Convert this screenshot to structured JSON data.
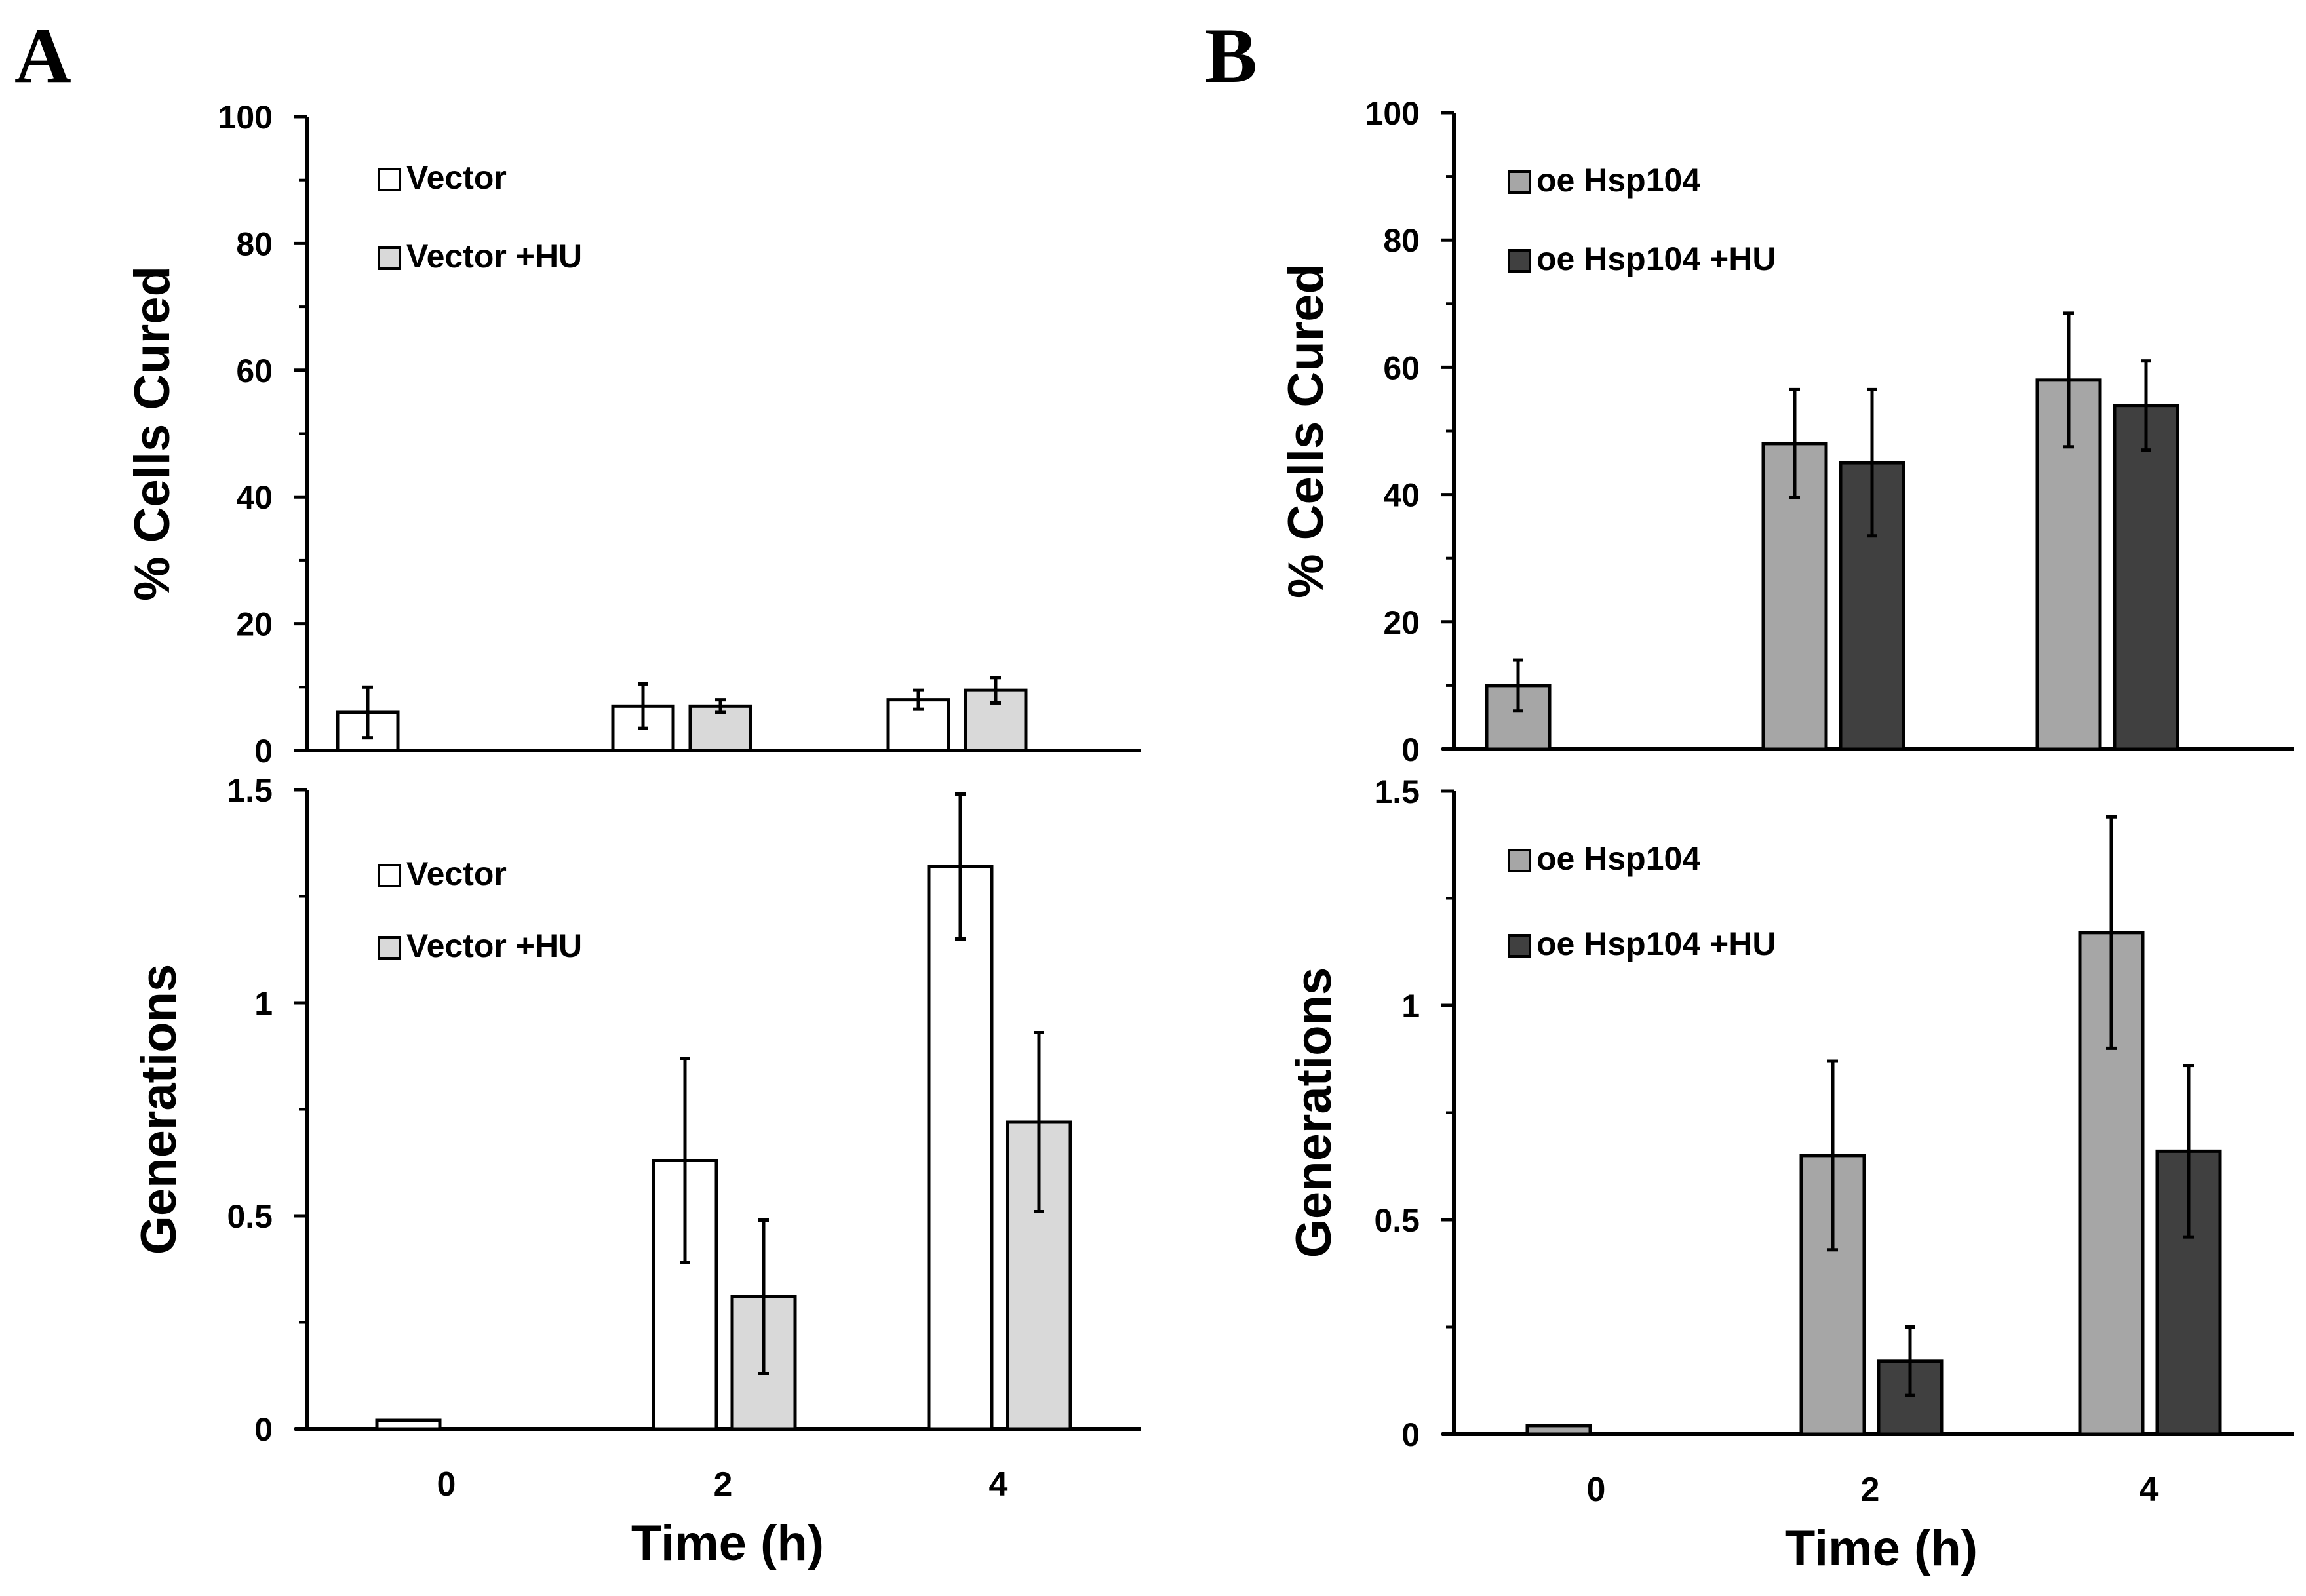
{
  "panels": {
    "A": {
      "letter": "A"
    },
    "B": {
      "letter": "B"
    }
  },
  "chart_data": [
    {
      "panel": "A",
      "type": "bar",
      "ylabel": "% Cells Cured",
      "xlabel": "",
      "ylim": [
        0,
        100
      ],
      "yticks": [
        0,
        20,
        40,
        60,
        80,
        100
      ],
      "categories": [
        "0",
        "2",
        "4"
      ],
      "legend_position": "top-left",
      "series": [
        {
          "name": "Vector",
          "color": "#ffffff",
          "values": [
            6,
            7,
            8
          ],
          "errors": [
            4,
            3.5,
            1.5
          ]
        },
        {
          "name": "Vector +HU",
          "color": "#d9d9d9",
          "values": [
            null,
            7,
            9.5
          ],
          "errors": [
            null,
            1,
            2
          ]
        }
      ]
    },
    {
      "panel": "A",
      "type": "bar",
      "ylabel": "Generations",
      "xlabel": "Time (h)",
      "ylim": [
        0,
        1.5
      ],
      "yticks": [
        0,
        0.5,
        1,
        1.5
      ],
      "categories": [
        "0",
        "2",
        "4"
      ],
      "legend_position": "top-left",
      "series": [
        {
          "name": "Vector",
          "color": "#ffffff",
          "values": [
            0.02,
            0.63,
            1.32
          ],
          "errors": [
            0,
            0.24,
            0.17
          ]
        },
        {
          "name": "Vector +HU",
          "color": "#d9d9d9",
          "values": [
            null,
            0.31,
            0.72
          ],
          "errors": [
            null,
            0.18,
            0.21
          ]
        }
      ]
    },
    {
      "panel": "B",
      "type": "bar",
      "ylabel": "% Cells Cured",
      "xlabel": "",
      "ylim": [
        0,
        100
      ],
      "yticks": [
        0,
        20,
        40,
        60,
        80,
        100
      ],
      "categories": [
        "0",
        "2",
        "4"
      ],
      "legend_position": "top-left",
      "series": [
        {
          "name": "oe Hsp104",
          "color": "#a6a6a6",
          "values": [
            10,
            48,
            58
          ],
          "errors": [
            4,
            8.5,
            10.5
          ]
        },
        {
          "name": "oe Hsp104 +HU",
          "color": "#404040",
          "values": [
            null,
            45,
            54
          ],
          "errors": [
            null,
            11.5,
            7
          ]
        }
      ]
    },
    {
      "panel": "B",
      "type": "bar",
      "ylabel": "Generations",
      "xlabel": "Time (h)",
      "ylim": [
        0,
        1.5
      ],
      "yticks": [
        0,
        0.5,
        1,
        1.5
      ],
      "categories": [
        "0",
        "2",
        "4"
      ],
      "legend_position": "top-left",
      "series": [
        {
          "name": "oe Hsp104",
          "color": "#a6a6a6",
          "values": [
            0.02,
            0.65,
            1.17
          ],
          "errors": [
            0,
            0.22,
            0.27
          ]
        },
        {
          "name": "oe Hsp104 +HU",
          "color": "#404040",
          "values": [
            null,
            0.17,
            0.66
          ],
          "errors": [
            null,
            0.08,
            0.2
          ]
        }
      ]
    }
  ]
}
